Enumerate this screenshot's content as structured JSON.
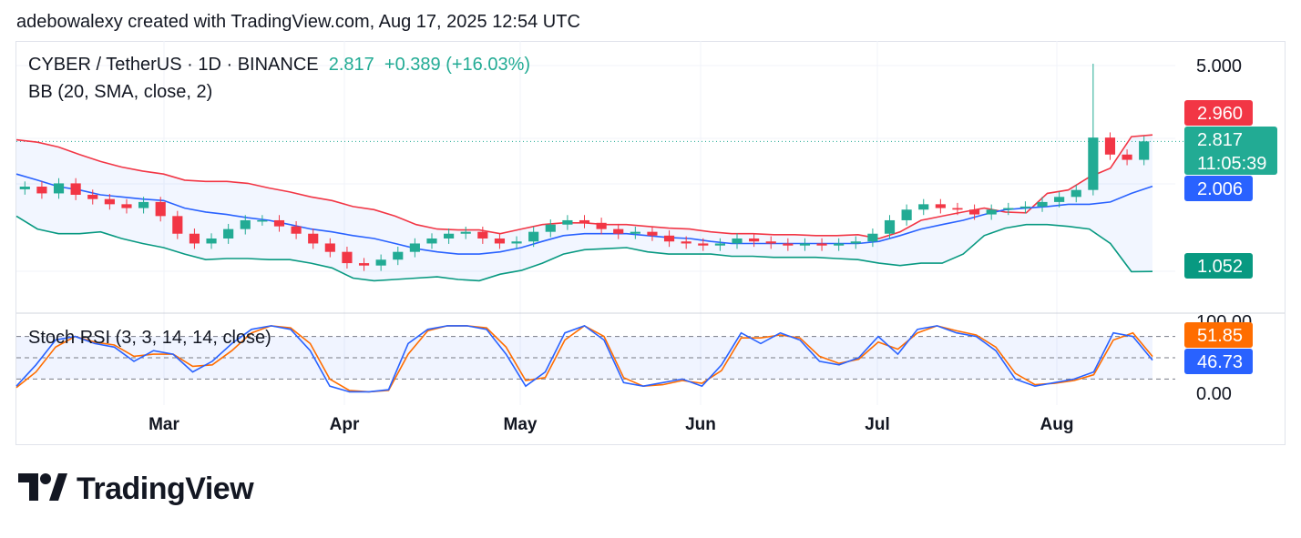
{
  "header": {
    "attribution": "adebowalexy created with TradingView.com, Aug 17, 2025 12:54 UTC"
  },
  "legend": {
    "symbol": "CYBER / TetherUS · 1D · BINANCE",
    "price": "2.817",
    "change": "+0.389 (+16.03%)",
    "bb_label": "BB (20, SMA, close, 2)",
    "stoch_label": "Stoch RSI (3, 3, 14, 14, close)"
  },
  "brand": {
    "name": "TradingView"
  },
  "colors": {
    "up": "#22ab94",
    "down": "#f23645",
    "bb_upper": "#f23645",
    "bb_basis": "#2962ff",
    "bb_lower": "#089981",
    "stoch_k": "#2962ff",
    "stoch_d": "#ff6d00"
  },
  "chart_data": {
    "type": "candlestick",
    "x_labels": [
      "Mar",
      "Apr",
      "May",
      "Jun",
      "Jul",
      "Aug"
    ],
    "price_axis_labels": [
      "5.000"
    ],
    "price_scale": "log",
    "tags": {
      "bb_upper": "2.960",
      "last_price": "2.817",
      "countdown": "11:05:39",
      "bb_basis": "2.006",
      "bb_lower": "1.052"
    },
    "bollinger": {
      "upper": [
        2.85,
        2.8,
        2.7,
        2.55,
        2.42,
        2.32,
        2.25,
        2.2,
        2.1,
        2.08,
        2.08,
        2.05,
        1.98,
        1.92,
        1.85,
        1.8,
        1.72,
        1.68,
        1.6,
        1.5,
        1.45,
        1.44,
        1.44,
        1.4,
        1.45,
        1.5,
        1.52,
        1.52,
        1.5,
        1.5,
        1.48,
        1.46,
        1.45,
        1.42,
        1.4,
        1.4,
        1.39,
        1.39,
        1.38,
        1.38,
        1.39,
        1.35,
        1.42,
        1.55,
        1.6,
        1.65,
        1.7,
        1.65,
        1.64,
        1.9,
        1.95,
        2.15,
        2.3,
        2.92,
        2.96
      ],
      "basis": [
        2.2,
        2.1,
        2.0,
        1.95,
        1.88,
        1.85,
        1.82,
        1.8,
        1.7,
        1.65,
        1.62,
        1.58,
        1.55,
        1.5,
        1.45,
        1.42,
        1.38,
        1.35,
        1.3,
        1.25,
        1.22,
        1.2,
        1.2,
        1.22,
        1.26,
        1.32,
        1.38,
        1.4,
        1.4,
        1.4,
        1.38,
        1.36,
        1.35,
        1.32,
        1.3,
        1.3,
        1.3,
        1.3,
        1.3,
        1.3,
        1.3,
        1.32,
        1.38,
        1.45,
        1.5,
        1.55,
        1.62,
        1.68,
        1.7,
        1.72,
        1.75,
        1.75,
        1.78,
        1.9,
        2.006
      ],
      "lower": [
        1.6,
        1.45,
        1.4,
        1.4,
        1.42,
        1.35,
        1.3,
        1.26,
        1.2,
        1.15,
        1.16,
        1.16,
        1.15,
        1.15,
        1.12,
        1.08,
        1.0,
        0.98,
        0.99,
        1.0,
        1.01,
        0.99,
        0.98,
        1.03,
        1.06,
        1.12,
        1.2,
        1.24,
        1.25,
        1.26,
        1.22,
        1.2,
        1.2,
        1.2,
        1.18,
        1.18,
        1.17,
        1.17,
        1.17,
        1.16,
        1.15,
        1.12,
        1.1,
        1.12,
        1.12,
        1.2,
        1.38,
        1.46,
        1.5,
        1.5,
        1.48,
        1.45,
        1.3,
        1.05,
        1.052
      ]
    },
    "close": [
      2.0,
      1.9,
      2.05,
      1.88,
      1.82,
      1.75,
      1.7,
      1.78,
      1.6,
      1.4,
      1.3,
      1.35,
      1.45,
      1.55,
      1.55,
      1.48,
      1.4,
      1.3,
      1.22,
      1.12,
      1.1,
      1.15,
      1.22,
      1.3,
      1.35,
      1.4,
      1.42,
      1.35,
      1.3,
      1.32,
      1.42,
      1.5,
      1.55,
      1.52,
      1.45,
      1.4,
      1.42,
      1.38,
      1.32,
      1.3,
      1.28,
      1.3,
      1.35,
      1.32,
      1.3,
      1.28,
      1.3,
      1.28,
      1.3,
      1.32,
      1.4,
      1.55,
      1.68,
      1.75,
      1.7,
      1.68,
      1.62,
      1.68,
      1.7,
      1.72,
      1.78,
      1.85,
      1.95,
      2.9,
      2.55,
      2.45,
      2.817
    ],
    "stoch_rsi": {
      "k": [
        10,
        40,
        75,
        80,
        70,
        65,
        45,
        60,
        55,
        30,
        45,
        70,
        90,
        95,
        90,
        60,
        10,
        2,
        2,
        5,
        70,
        90,
        95,
        95,
        90,
        55,
        10,
        30,
        85,
        95,
        75,
        15,
        10,
        15,
        20,
        10,
        40,
        85,
        70,
        85,
        75,
        45,
        40,
        50,
        80,
        55,
        90,
        95,
        85,
        80,
        60,
        20,
        10,
        15,
        20,
        30,
        85,
        80,
        46.73
      ],
      "d": [
        8,
        30,
        65,
        80,
        72,
        68,
        52,
        55,
        55,
        38,
        40,
        60,
        85,
        95,
        92,
        70,
        20,
        4,
        2,
        4,
        55,
        88,
        95,
        95,
        92,
        65,
        18,
        22,
        75,
        95,
        80,
        22,
        10,
        12,
        18,
        14,
        32,
        78,
        78,
        82,
        78,
        52,
        42,
        48,
        72,
        62,
        85,
        95,
        88,
        82,
        65,
        28,
        12,
        14,
        18,
        26,
        75,
        85,
        51.85
      ],
      "levels": [
        "100.00",
        "0.00"
      ],
      "tags": {
        "d": "51.85",
        "k": "46.73"
      }
    }
  }
}
